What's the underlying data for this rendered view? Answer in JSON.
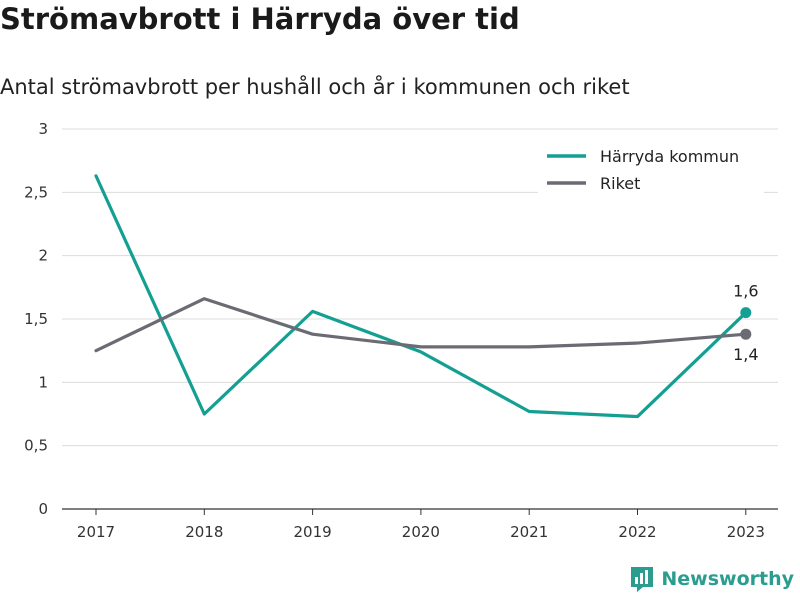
{
  "title": "Strömavbrott i Härryda över tid",
  "subtitle": "Antal strömavbrott per hushåll och år i kommunen och riket",
  "brand": "Newsworthy",
  "chart_data": {
    "type": "line",
    "x": [
      "2017",
      "2018",
      "2019",
      "2020",
      "2021",
      "2022",
      "2023"
    ],
    "y_ticks": [
      "0",
      "0,5",
      "1",
      "1,5",
      "2",
      "2,5",
      "3"
    ],
    "ylim": [
      0,
      3
    ],
    "grid": true,
    "legend_position": "top-right",
    "series": [
      {
        "name": "Härryda kommun",
        "color": "#139f92",
        "values": [
          2.63,
          0.75,
          1.56,
          1.24,
          0.77,
          0.73,
          1.55
        ],
        "end_label": "1,6"
      },
      {
        "name": "Riket",
        "color": "#6b6b73",
        "values": [
          1.25,
          1.66,
          1.38,
          1.28,
          1.28,
          1.31,
          1.38
        ],
        "end_label": "1,4"
      }
    ]
  }
}
